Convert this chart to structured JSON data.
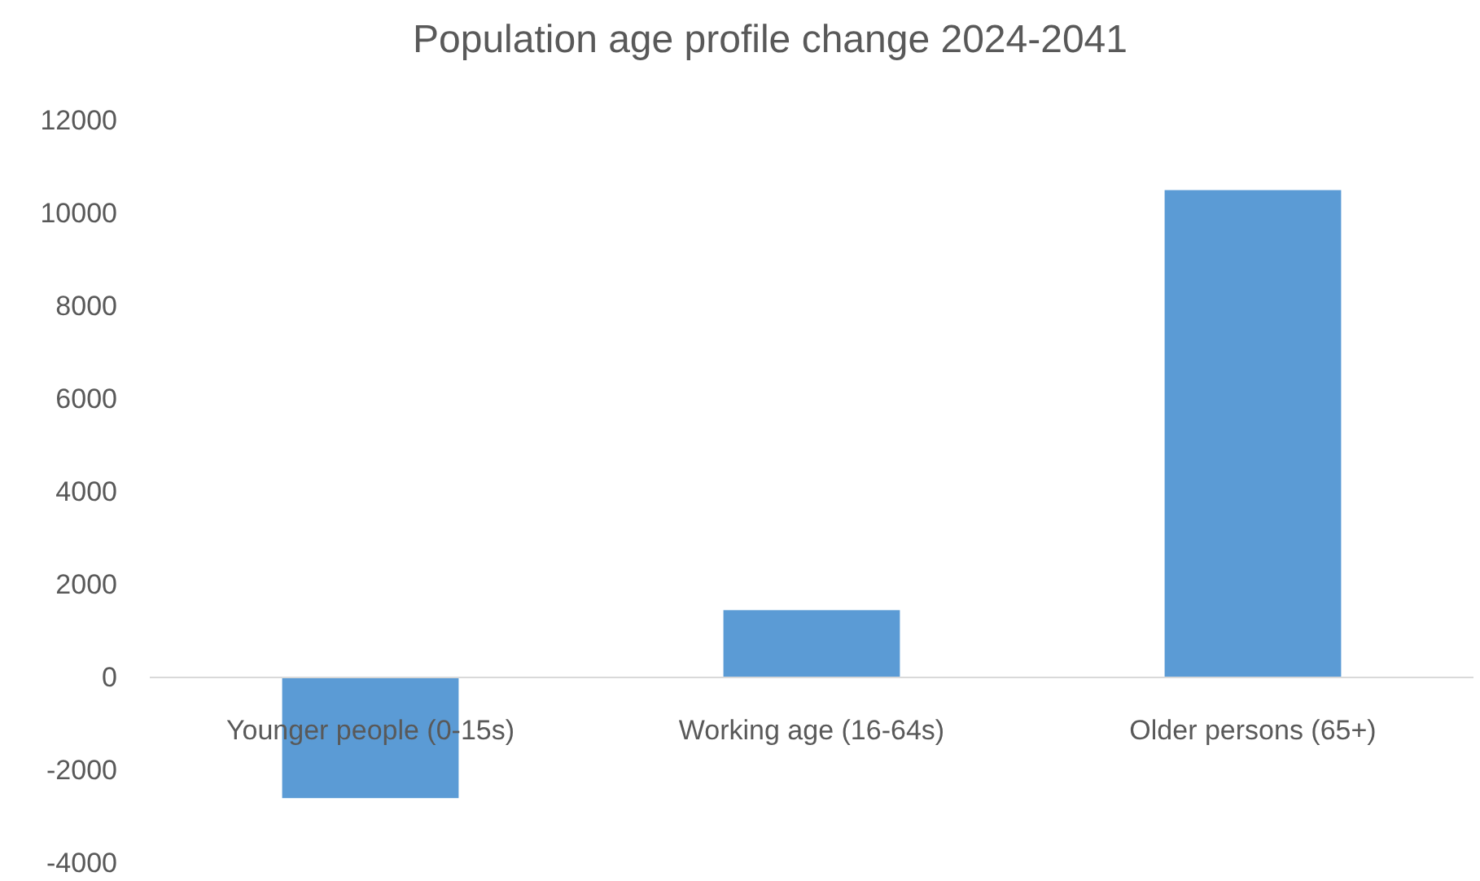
{
  "chart_data": {
    "type": "bar",
    "title": "Population age profile change 2024-2041",
    "categories": [
      "Younger people (0-15s)",
      "Working age (16-64s)",
      "Older persons (65+)"
    ],
    "values": [
      -2600,
      1450,
      10500
    ],
    "color": "#5b9bd5",
    "ylim": [
      -4000,
      12000
    ],
    "yticks": [
      -4000,
      -2000,
      0,
      2000,
      4000,
      6000,
      8000,
      10000,
      12000
    ],
    "grid": false
  }
}
